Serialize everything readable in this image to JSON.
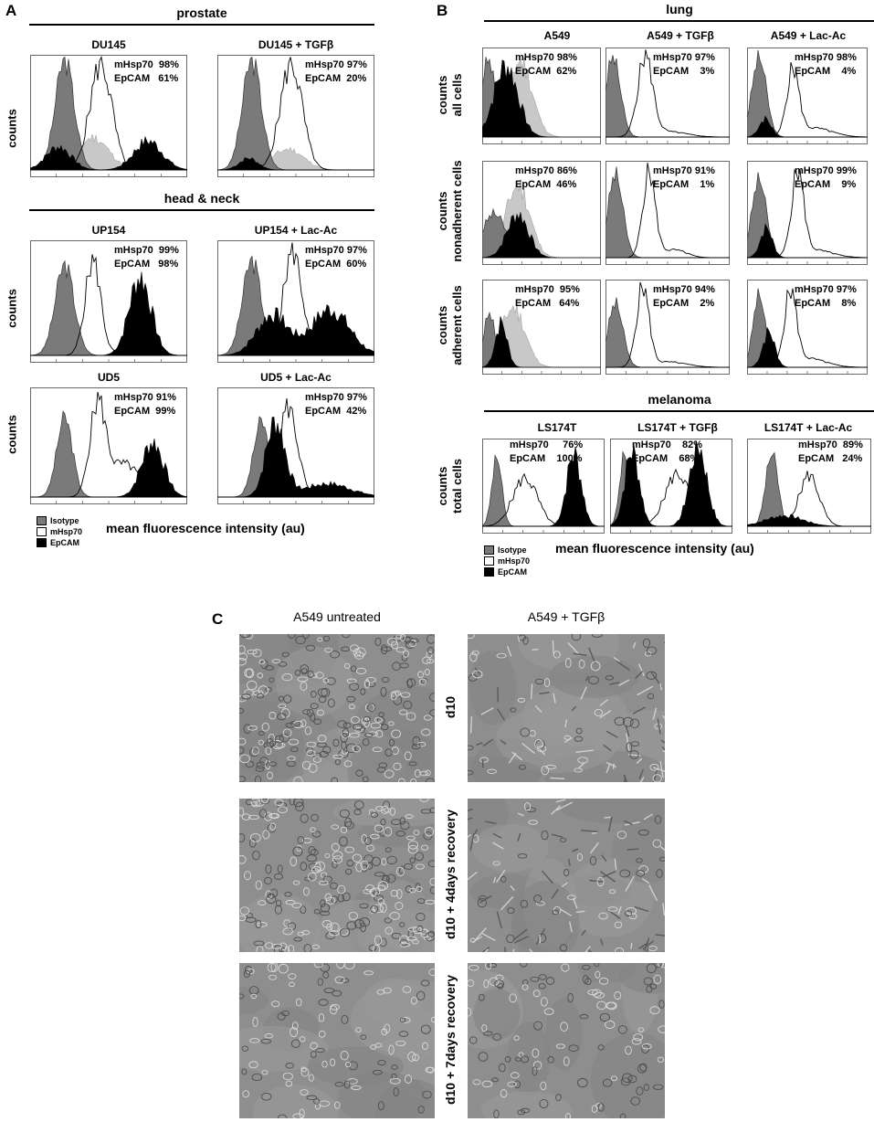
{
  "panel_a": {
    "letter": "A",
    "group1": "prostate",
    "group2": "head & neck",
    "xlabel": "mean fluorescence intensity (au)",
    "ylabel": "counts",
    "legend": [
      "Isotype",
      "mHsp70",
      "EpCAM"
    ],
    "plots": [
      {
        "title": "DU145",
        "mhsp": "mHsp70  98%",
        "epcam": "EpCAM   61%"
      },
      {
        "title": "DU145 + TGFβ",
        "mhsp": "mHsp70 97%",
        "epcam": "EpCAM  20%"
      },
      {
        "title": "UP154",
        "mhsp": "mHsp70  99%",
        "epcam": "EpCAM   98%"
      },
      {
        "title": "UP154 + Lac-Ac",
        "mhsp": "mHsp70 97%",
        "epcam": "EpCAM  60%"
      },
      {
        "title": "UD5",
        "mhsp": "mHsp70 91%",
        "epcam": "EpCAM  99%"
      },
      {
        "title": "UD5 + Lac-Ac",
        "mhsp": "mHsp70 97%",
        "epcam": "EpCAM  42%"
      }
    ]
  },
  "panel_b": {
    "letter": "B",
    "group1": "lung",
    "group2": "melanoma",
    "xlabel": "mean fluorescence intensity (au)",
    "legend": [
      "Isotype",
      "mHsp70",
      "EpCAM"
    ],
    "row_labels": [
      [
        "counts",
        "all cells"
      ],
      [
        "counts",
        "nonadherent cells"
      ],
      [
        "counts",
        "adherent cells"
      ],
      [
        "counts",
        "total cells"
      ]
    ],
    "col_titles": [
      "A549",
      "A549  + TGFβ",
      "A549 + Lac-Ac"
    ],
    "mel_titles": [
      "LS174T",
      "LS174T + TGFβ",
      "LS174T + Lac-Ac"
    ],
    "plots": [
      {
        "mhsp": "mHsp70 98%",
        "epcam": "EpCAM  62%"
      },
      {
        "mhsp": "mHsp70 97%",
        "epcam": "EpCAM    3%"
      },
      {
        "mhsp": "mHsp70 98%",
        "epcam": "EpCAM    4%"
      },
      {
        "mhsp": "mHsp70 86%",
        "epcam": "EpCAM  46%"
      },
      {
        "mhsp": "mHsp70 91%",
        "epcam": "EpCAM    1%"
      },
      {
        "mhsp": "mHsp70 99%",
        "epcam": "EpCAM    9%"
      },
      {
        "mhsp": "mHsp70  95%",
        "epcam": "EpCAM   64%"
      },
      {
        "mhsp": "mHsp70 94%",
        "epcam": "EpCAM    2%"
      },
      {
        "mhsp": "mHsp70 97%",
        "epcam": "EpCAM    8%"
      },
      {
        "mhsp": "mHsp70     76%",
        "epcam": "EpCAM    100%"
      },
      {
        "mhsp": "mHsp70    82%",
        "epcam": "EpCAM    68%"
      },
      {
        "mhsp": "mHsp70  89%",
        "epcam": "EpCAM   24%"
      }
    ]
  },
  "panel_c": {
    "letter": "C",
    "col_titles": [
      "A549 untreated",
      "A549 + TGFβ"
    ],
    "row_labels": [
      "d10",
      "d10 + 4days recovery",
      "d10 + 7days recovery"
    ]
  },
  "colors": {
    "isotype": "#7a7a7a",
    "mhsp": "#ffffff",
    "epcam": "#000000",
    "light": "#c8c8c8",
    "micro_bg": "#8e8e8e"
  }
}
